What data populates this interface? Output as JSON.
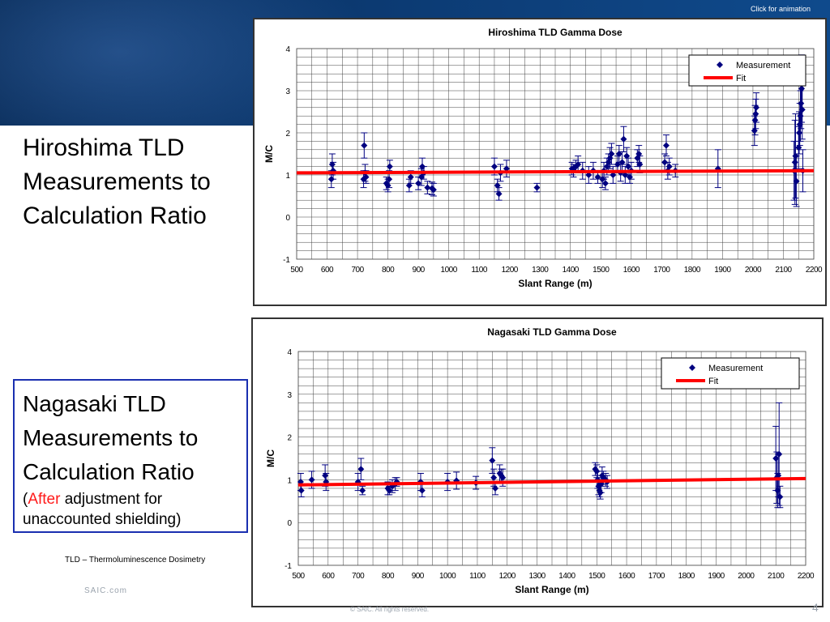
{
  "header": {
    "animation_link": "Click for animation"
  },
  "left_panel": {
    "hiroshima_title_lines": [
      "Hiroshima TLD",
      "Measurements to",
      "Calculation Ratio"
    ],
    "nagasaki_title_lines": [
      "Nagasaki TLD",
      "Measurements to",
      "Calculation Ratio"
    ],
    "nagasaki_note_open": "(",
    "nagasaki_note_highlight": "After",
    "nagasaki_note_rest_line1": " adjustment for",
    "nagasaki_note_rest_line2": "unaccounted shielding)",
    "highlight_color": "#ff1a1a"
  },
  "footer": {
    "footnote": "TLD – Thermoluminescence Dosimetry",
    "site": "SAIC.com",
    "copyright": "© SAIC. All rights reserved.",
    "slide_number": "4"
  },
  "colors": {
    "measurement": "#000080",
    "fit": "#ff0000",
    "banner": "#0c3a72"
  },
  "chart_data": [
    {
      "type": "scatter",
      "title": "Hiroshima TLD Gamma Dose",
      "xlabel": "Slant Range (m)",
      "ylabel": "M/C",
      "xlim": [
        500,
        2200
      ],
      "ylim": [
        -1,
        4
      ],
      "xticks": [
        500,
        600,
        700,
        800,
        900,
        1000,
        1100,
        1200,
        1300,
        1400,
        1500,
        1600,
        1700,
        1800,
        1900,
        2000,
        2100,
        2200
      ],
      "yticks": [
        -1,
        0,
        1,
        2,
        3,
        4
      ],
      "legend": [
        "Measurement",
        "Fit"
      ],
      "legend_position": "top-right",
      "grid": true,
      "fit": {
        "x": [
          500,
          2200
        ],
        "y": [
          1.05,
          1.1
        ]
      },
      "points": [
        [
          614,
          0.9,
          0.2
        ],
        [
          617,
          1.25,
          0.25
        ],
        [
          620,
          1.1,
          0.2
        ],
        [
          720,
          0.9,
          0.2
        ],
        [
          722,
          1.7,
          0.3
        ],
        [
          725,
          1.05,
          0.2
        ],
        [
          728,
          0.95,
          0.15
        ],
        [
          795,
          0.8,
          0.15
        ],
        [
          800,
          0.75,
          0.15
        ],
        [
          804,
          0.9,
          0.2
        ],
        [
          806,
          1.2,
          0.15
        ],
        [
          870,
          0.75,
          0.15
        ],
        [
          875,
          0.95,
          0.15
        ],
        [
          900,
          0.8,
          0.15
        ],
        [
          910,
          0.95,
          0.2
        ],
        [
          913,
          1.2,
          0.2
        ],
        [
          918,
          1.05,
          0.15
        ],
        [
          930,
          0.7,
          0.15
        ],
        [
          945,
          0.68,
          0.15
        ],
        [
          950,
          0.65,
          0.15
        ],
        [
          1150,
          1.2,
          0.2
        ],
        [
          1160,
          0.75,
          0.15
        ],
        [
          1165,
          0.55,
          0.15
        ],
        [
          1170,
          1.05,
          0.2
        ],
        [
          1190,
          1.15,
          0.2
        ],
        [
          1290,
          0.7,
          0.1
        ],
        [
          1405,
          1.15,
          0.15
        ],
        [
          1410,
          1.1,
          0.15
        ],
        [
          1418,
          1.2,
          0.15
        ],
        [
          1425,
          1.25,
          0.2
        ],
        [
          1440,
          1.1,
          0.2
        ],
        [
          1460,
          1.0,
          0.2
        ],
        [
          1475,
          1.1,
          0.2
        ],
        [
          1490,
          0.95,
          0.15
        ],
        [
          1505,
          0.9,
          0.2
        ],
        [
          1510,
          1.1,
          0.2
        ],
        [
          1515,
          0.8,
          0.15
        ],
        [
          1520,
          1.2,
          0.2
        ],
        [
          1525,
          1.3,
          0.2
        ],
        [
          1530,
          1.4,
          0.25
        ],
        [
          1535,
          1.5,
          0.25
        ],
        [
          1540,
          1.0,
          0.2
        ],
        [
          1555,
          1.25,
          0.2
        ],
        [
          1560,
          1.5,
          0.2
        ],
        [
          1565,
          1.05,
          0.2
        ],
        [
          1570,
          1.3,
          0.25
        ],
        [
          1575,
          1.85,
          0.3
        ],
        [
          1580,
          1.0,
          0.2
        ],
        [
          1585,
          1.45,
          0.2
        ],
        [
          1590,
          1.2,
          0.2
        ],
        [
          1595,
          0.95,
          0.15
        ],
        [
          1600,
          1.1,
          0.2
        ],
        [
          1620,
          1.4,
          0.2
        ],
        [
          1625,
          1.5,
          0.2
        ],
        [
          1628,
          1.25,
          0.2
        ],
        [
          1710,
          1.3,
          0.2
        ],
        [
          1715,
          1.7,
          0.25
        ],
        [
          1720,
          1.1,
          0.2
        ],
        [
          1725,
          1.2,
          0.2
        ],
        [
          1745,
          1.1,
          0.15
        ],
        [
          1885,
          1.15,
          0.45
        ],
        [
          2005,
          2.05,
          0.35
        ],
        [
          2007,
          2.3,
          0.35
        ],
        [
          2009,
          2.45,
          0.35
        ],
        [
          2011,
          2.6,
          0.35
        ],
        [
          2135,
          1.1,
          0.7
        ],
        [
          2138,
          1.3,
          1.0
        ],
        [
          2140,
          1.45,
          1.0
        ],
        [
          2143,
          0.85,
          0.6
        ],
        [
          2150,
          1.65,
          0.5
        ],
        [
          2152,
          2.0,
          0.5
        ],
        [
          2154,
          2.2,
          0.5
        ],
        [
          2156,
          2.4,
          0.6
        ],
        [
          2158,
          2.7,
          0.6
        ],
        [
          2160,
          3.05,
          0.8
        ],
        [
          2162,
          2.55,
          0.7
        ],
        [
          2164,
          1.1,
          0.5
        ]
      ]
    },
    {
      "type": "scatter",
      "title": "Nagasaki TLD Gamma Dose",
      "xlabel": "Slant Range (m)",
      "ylabel": "M/C",
      "xlim": [
        500,
        2200
      ],
      "ylim": [
        -1,
        4
      ],
      "xticks": [
        500,
        600,
        700,
        800,
        900,
        1000,
        1100,
        1200,
        1300,
        1400,
        1500,
        1600,
        1700,
        1800,
        1900,
        2000,
        2100,
        2200
      ],
      "yticks": [
        -1,
        0,
        1,
        2,
        3,
        4
      ],
      "legend": [
        "Measurement",
        "Fit"
      ],
      "legend_position": "top-right",
      "grid": true,
      "fit": {
        "x": [
          500,
          2200
        ],
        "y": [
          0.88,
          1.03
        ]
      },
      "points": [
        [
          508,
          0.95,
          0.2
        ],
        [
          510,
          0.75,
          0.15
        ],
        [
          545,
          1.0,
          0.2
        ],
        [
          590,
          1.1,
          0.25
        ],
        [
          593,
          0.95,
          0.2
        ],
        [
          700,
          0.95,
          0.2
        ],
        [
          710,
          1.25,
          0.25
        ],
        [
          715,
          0.75,
          0.1
        ],
        [
          800,
          0.8,
          0.15
        ],
        [
          805,
          0.75,
          0.1
        ],
        [
          815,
          0.85,
          0.15
        ],
        [
          825,
          0.9,
          0.15
        ],
        [
          830,
          0.95,
          0.1
        ],
        [
          910,
          0.95,
          0.2
        ],
        [
          915,
          0.75,
          0.15
        ],
        [
          1000,
          0.95,
          0.2
        ],
        [
          1030,
          0.98,
          0.2
        ],
        [
          1095,
          0.93,
          0.15
        ],
        [
          1150,
          1.45,
          0.3
        ],
        [
          1155,
          1.05,
          0.2
        ],
        [
          1160,
          0.8,
          0.15
        ],
        [
          1175,
          1.15,
          0.2
        ],
        [
          1180,
          1.1,
          0.15
        ],
        [
          1185,
          1.05,
          0.2
        ],
        [
          1495,
          1.25,
          0.15
        ],
        [
          1500,
          1.2,
          0.15
        ],
        [
          1503,
          1.0,
          0.2
        ],
        [
          1506,
          0.85,
          0.2
        ],
        [
          1509,
          0.75,
          0.15
        ],
        [
          1512,
          0.7,
          0.15
        ],
        [
          1515,
          0.9,
          0.2
        ],
        [
          1518,
          1.1,
          0.2
        ],
        [
          1522,
          1.05,
          0.15
        ],
        [
          1530,
          1.0,
          0.15
        ],
        [
          1535,
          0.95,
          0.15
        ],
        [
          2100,
          1.5,
          0.75
        ],
        [
          2103,
          1.05,
          0.6
        ],
        [
          2106,
          0.75,
          0.4
        ],
        [
          2108,
          1.1,
          0.5
        ],
        [
          2111,
          1.6,
          1.2
        ],
        [
          2114,
          0.6,
          0.25
        ]
      ]
    }
  ]
}
